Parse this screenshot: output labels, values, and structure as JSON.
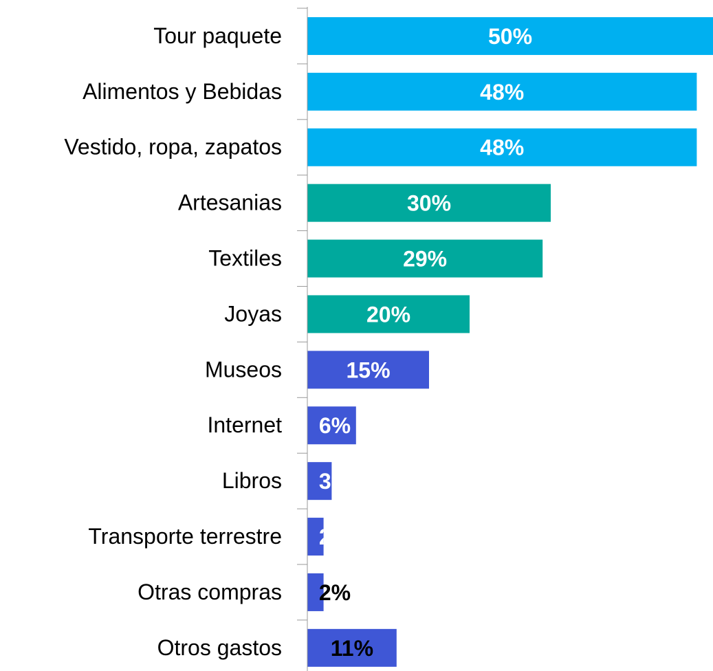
{
  "chart_data": {
    "type": "barh",
    "categories": [
      "Tour paquete",
      "Alimentos y Bebidas",
      "Vestido, ropa, zapatos",
      "Artesanias",
      "Textiles",
      "Joyas",
      "Museos",
      "Internet",
      "Libros",
      "Transporte terrestre",
      "Otras compras",
      "Otros gastos"
    ],
    "values": [
      50,
      48,
      48,
      30,
      29,
      20,
      15,
      6,
      3,
      2,
      2,
      11
    ],
    "value_labels": [
      "50%",
      "48%",
      "48%",
      "30%",
      "29%",
      "20%",
      "15%",
      "6%",
      "3%",
      "2%",
      "2%",
      "11%"
    ],
    "colors": [
      "#00b0f0",
      "#00b0f0",
      "#00b0f0",
      "#00a99d",
      "#00a99d",
      "#00a99d",
      "#3f57d6",
      "#3f57d6",
      "#3f57d6",
      "#3f57d6",
      "#3f57d6",
      "#3f57d6"
    ],
    "label_colors": [
      "#ffffff",
      "#ffffff",
      "#ffffff",
      "#ffffff",
      "#ffffff",
      "#ffffff",
      "#ffffff",
      "#ffffff",
      "#ffffff",
      "#ffffff",
      "#000000",
      "#000000"
    ],
    "xlim": [
      0,
      50
    ]
  }
}
